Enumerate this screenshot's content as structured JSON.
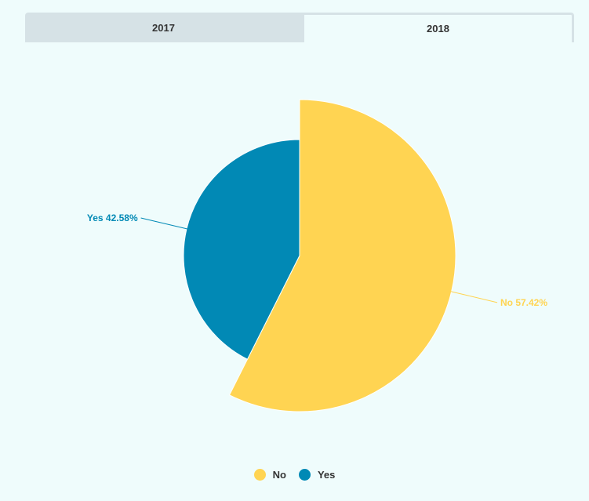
{
  "tabs": [
    {
      "label": "2017",
      "active": false
    },
    {
      "label": "2018",
      "active": true
    }
  ],
  "colors": {
    "no": "#ffd452",
    "yes": "#0189b5"
  },
  "chart_data": {
    "type": "pie",
    "categories": [
      "No",
      "Yes"
    ],
    "values": [
      57.42,
      42.58
    ],
    "value_unit": "%",
    "data_labels": [
      "No 57.42%",
      "Yes 42.58%"
    ],
    "variable_radius": true,
    "legend_position": "bottom-center",
    "legend": [
      "No",
      "Yes"
    ]
  }
}
